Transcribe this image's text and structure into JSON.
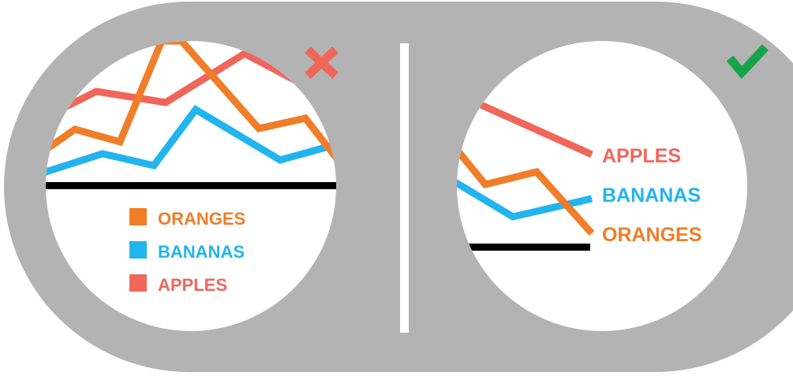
{
  "colors": {
    "background": "#ffffff",
    "frame": "#b3b3b3",
    "divider": "#ffffff",
    "panel": "#ffffff",
    "baseline": "#000000",
    "cross": "#f0665a",
    "check": "#16a34a"
  },
  "panels": {
    "bad": {
      "verdict_icon": "cross-icon",
      "series": [
        {
          "key": "oranges",
          "label": "ORANGES",
          "color": "#f07d28"
        },
        {
          "key": "bananas",
          "label": "BANANAS",
          "color": "#22b4ee"
        },
        {
          "key": "apples",
          "label": "APPLES",
          "color": "#f0665a"
        }
      ]
    },
    "good": {
      "verdict_icon": "check-icon",
      "series": [
        {
          "key": "apples",
          "label": "APPLES",
          "color": "#f0665a"
        },
        {
          "key": "bananas",
          "label": "BANANAS",
          "color": "#22b4ee"
        },
        {
          "key": "oranges",
          "label": "ORANGES",
          "color": "#f07d28"
        }
      ]
    }
  }
}
